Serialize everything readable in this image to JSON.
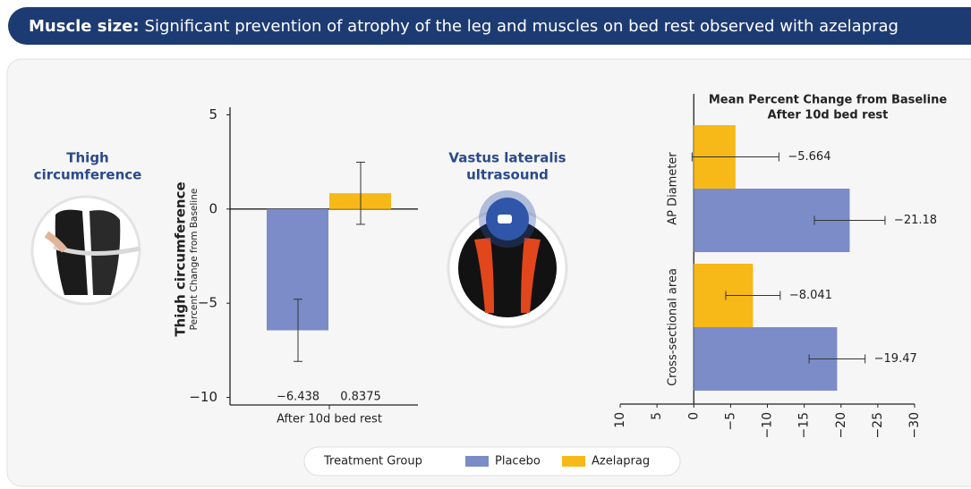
{
  "header": {
    "title_bold": "Muscle size:",
    "title_rest": "Significant prevention of atrophy of the leg and muscles on bed rest observed with azelaprag"
  },
  "panels": {
    "thigh": [
      "Thigh",
      "circumference"
    ],
    "vastus": [
      "Vastus lateralis",
      "ultrasound"
    ]
  },
  "chart_data": [
    {
      "type": "bar",
      "y_label": "Thigh circumference",
      "y_sublabel": "Percent Change from Baseline",
      "categories": [
        "After 10d bed rest"
      ],
      "series": [
        {
          "name": "Placebo",
          "color": "#7b8cc8",
          "values": [
            -6.438
          ],
          "errors": [
            1.65
          ],
          "value_labels": [
            "−6.438"
          ]
        },
        {
          "name": "Azelaprag",
          "color": "#f7b917",
          "values": [
            0.8375
          ],
          "errors": [
            1.65
          ],
          "value_labels": [
            "0.8375"
          ]
        }
      ],
      "ylim": [
        -10.4,
        5.4
      ],
      "yticks": [
        {
          "value": -10,
          "label": "−10"
        },
        {
          "value": -5,
          "label": "−5"
        },
        0,
        5
      ],
      "legend_title": "Treatment Group"
    },
    {
      "type": "hbar",
      "title": [
        "Mean Percent Change from Baseline",
        "After 10d bed rest"
      ],
      "categories": [
        "AP Diameter",
        "Cross-sectional area"
      ],
      "series": [
        {
          "name": "Azelaprag",
          "color": "#f7b917",
          "values": [
            -5.664,
            -8.041
          ],
          "errors": [
            5.9,
            3.7
          ],
          "value_labels": [
            "−5.664",
            "−8.041"
          ]
        },
        {
          "name": "Placebo",
          "color": "#7b8cc8",
          "values": [
            -21.18,
            -19.47
          ],
          "errors": [
            4.8,
            3.8
          ],
          "value_labels": [
            "−21.18",
            "−19.47"
          ]
        }
      ],
      "xlim": [
        10,
        -30
      ],
      "xticks": [
        10,
        5,
        0,
        {
          "value": -5,
          "label": "−5"
        },
        {
          "value": -10,
          "label": "−10"
        },
        {
          "value": -15,
          "label": "−15"
        },
        {
          "value": -20,
          "label": "−20"
        },
        {
          "value": -25,
          "label": "−25"
        },
        {
          "value": -30,
          "label": "−30"
        }
      ]
    }
  ]
}
